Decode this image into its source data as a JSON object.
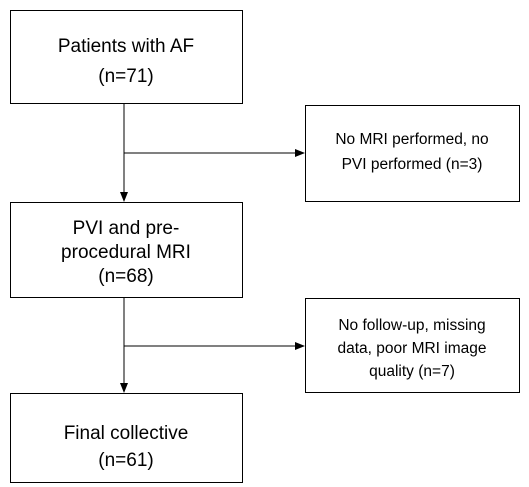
{
  "nodes": [
    {
      "lines": [
        "Patients with AF",
        "(n=71)"
      ]
    },
    {
      "lines": [
        "No MRI performed, no",
        "PVI performed (n=3)"
      ]
    },
    {
      "lines": [
        "PVI and pre-",
        "procedural MRI",
        "(n=68)"
      ]
    },
    {
      "lines": [
        "No follow-up, missing",
        "data, poor MRI image",
        "quality (n=7)"
      ]
    },
    {
      "lines": [
        "Final collective",
        "(n=61)"
      ]
    }
  ]
}
